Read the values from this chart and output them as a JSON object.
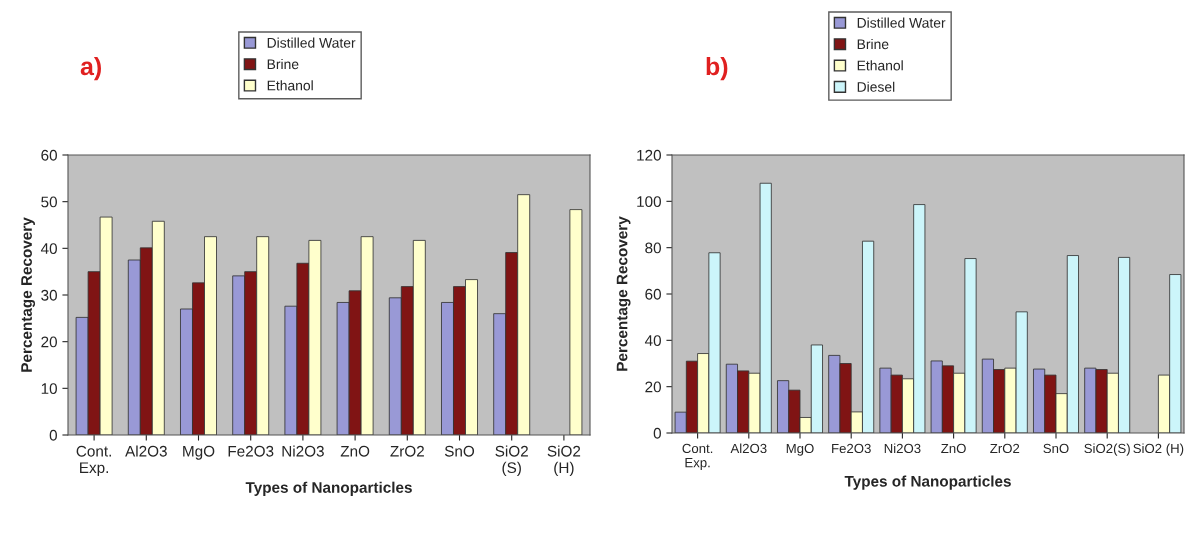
{
  "chart_data": [
    {
      "type": "bar",
      "xlabel": "Types of Nanoparticles",
      "ylabel": "Percentage Recovery",
      "annotations": [
        "a)"
      ],
      "categories": [
        "Cont.\nExp.",
        "Al2O3",
        "MgO",
        "Fe2O3",
        "Ni2O3",
        "ZnO",
        "ZrO2",
        "SnO",
        "SiO2\n(S)",
        "SiO2\n(H)"
      ],
      "series": [
        {
          "name": "Distilled Water",
          "color": "#9999d6",
          "values": [
            25.2,
            37.5,
            27,
            34.1,
            27.6,
            28.4,
            29.4,
            28.4,
            26,
            null
          ]
        },
        {
          "name": "Brine",
          "color": "#801414",
          "values": [
            35,
            40.1,
            32.6,
            35,
            36.8,
            30.9,
            31.8,
            31.8,
            39.1,
            null
          ]
        },
        {
          "name": "Ethanol",
          "color": "#ffffcc",
          "values": [
            46.7,
            45.8,
            42.5,
            42.5,
            41.7,
            42.5,
            41.7,
            33.3,
            51.5,
            48.3
          ]
        }
      ],
      "ylim": [
        0,
        60
      ],
      "yticks": [
        0,
        10,
        20,
        30,
        40,
        50,
        60
      ],
      "grid": false,
      "legend": "top"
    },
    {
      "type": "bar",
      "xlabel": "Types of Nanoparticles",
      "ylabel": "Percentage Recovery",
      "annotations": [
        "b)"
      ],
      "categories": [
        "Cont.\nExp.",
        "Al2O3",
        "MgO",
        "Fe2O3",
        "Ni2O3",
        "ZnO",
        "ZrO2",
        "SnO",
        "SiO2(S)",
        "SiO2 (H)"
      ],
      "series": [
        {
          "name": "Distilled Water",
          "color": "#9999d6",
          "values": [
            9,
            29.7,
            22.6,
            33.5,
            28,
            31.1,
            31.9,
            27.6,
            28,
            null
          ]
        },
        {
          "name": "Brine",
          "color": "#801414",
          "values": [
            31,
            26.8,
            18.5,
            30,
            25,
            29,
            27.4,
            25,
            27.4,
            null
          ]
        },
        {
          "name": "Ethanol",
          "color": "#ffffcc",
          "values": [
            34.3,
            25.8,
            6.7,
            9.1,
            23.4,
            25.8,
            28,
            17,
            25.8,
            25
          ]
        },
        {
          "name": "Diesel",
          "color": "#ccf5fa",
          "values": [
            77.8,
            107.8,
            38,
            82.8,
            98.6,
            75.3,
            52.3,
            76.6,
            75.8,
            68.4
          ]
        }
      ],
      "ylim": [
        0,
        120
      ],
      "yticks": [
        0,
        20,
        40,
        60,
        80,
        100,
        120
      ],
      "grid": false,
      "legend": "top"
    }
  ]
}
